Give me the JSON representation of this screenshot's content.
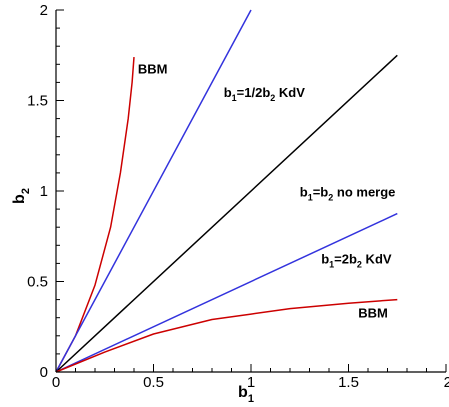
{
  "chart_data": {
    "type": "line",
    "title": "",
    "xlabel": "b",
    "xlabel_sub": "1",
    "ylabel": "b",
    "ylabel_sub": "2",
    "xlim": [
      0,
      2
    ],
    "ylim": [
      0,
      2
    ],
    "grid": false,
    "x_ticks": [
      "0",
      "0.5",
      "1",
      "1.5",
      "2"
    ],
    "y_ticks": [
      "0",
      "0.5",
      "1",
      "1.5",
      "2"
    ],
    "colors": {
      "red": "#cc0000",
      "blue": "#3333dd",
      "black": "#000000"
    },
    "series": [
      {
        "color": "#cc0000",
        "points": [
          [
            0,
            0
          ],
          [
            0.1,
            0.2
          ],
          [
            0.2,
            0.48
          ],
          [
            0.28,
            0.8
          ],
          [
            0.33,
            1.1
          ],
          [
            0.37,
            1.4
          ],
          [
            0.39,
            1.6
          ],
          [
            0.4,
            1.74
          ]
        ]
      },
      {
        "color": "#3333dd",
        "points": [
          [
            0,
            0
          ],
          [
            1.0,
            2.0
          ]
        ]
      },
      {
        "color": "#000000",
        "points": [
          [
            0,
            0
          ],
          [
            1.75,
            1.75
          ]
        ]
      },
      {
        "color": "#3333dd",
        "points": [
          [
            0,
            0
          ],
          [
            1.75,
            0.875
          ]
        ]
      },
      {
        "color": "#cc0000",
        "points": [
          [
            0,
            0
          ],
          [
            0.25,
            0.11
          ],
          [
            0.5,
            0.21
          ],
          [
            0.8,
            0.29
          ],
          [
            1.0,
            0.32
          ],
          [
            1.2,
            0.35
          ],
          [
            1.5,
            0.38
          ],
          [
            1.75,
            0.4
          ]
        ]
      }
    ],
    "annotations": [
      {
        "x": 0.42,
        "y": 1.65,
        "parts": [
          [
            "BBM",
            ""
          ]
        ]
      },
      {
        "x": 0.86,
        "y": 1.52,
        "parts": [
          [
            "b",
            "1"
          ],
          [
            "=1/2b",
            "2"
          ],
          [
            " KdV",
            ""
          ]
        ]
      },
      {
        "x": 1.25,
        "y": 0.97,
        "parts": [
          [
            "b",
            "1"
          ],
          [
            "=b",
            "2"
          ],
          [
            " no merge",
            ""
          ]
        ]
      },
      {
        "x": 1.36,
        "y": 0.6,
        "parts": [
          [
            "b",
            "1"
          ],
          [
            "=2b",
            "2"
          ],
          [
            " KdV",
            ""
          ]
        ]
      },
      {
        "x": 1.55,
        "y": 0.3,
        "parts": [
          [
            "BBM",
            ""
          ]
        ]
      }
    ]
  }
}
